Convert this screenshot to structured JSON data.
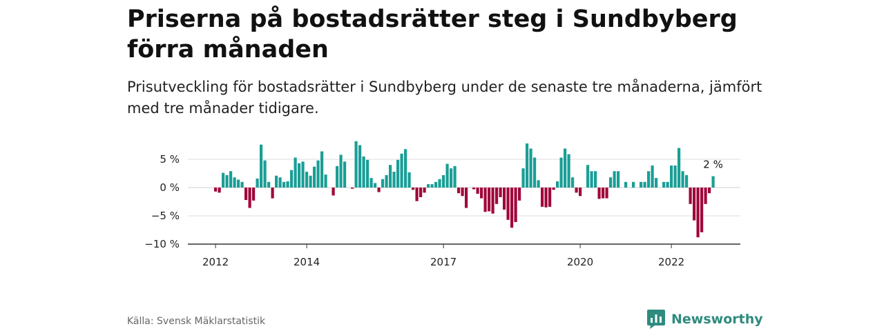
{
  "header": {
    "title": "Priserna på bostadsrätter steg i Sundbyberg förra månaden",
    "subtitle": "Prisutveckling för bostadsrätter i Sundbyberg under de senaste tre månaderna, jämfört med tre månader tidigare."
  },
  "footer": {
    "source": "Källa: Svensk Mäklarstatistik",
    "brand": "Newsworthy"
  },
  "colors": {
    "positive": "#1a9e96",
    "negative": "#a0063a",
    "gridline": "#dddddd",
    "axis": "#333333",
    "brand": "#2e8b7e"
  },
  "chart_data": {
    "type": "bar",
    "title": "Priserna på bostadsrätter steg i Sundbyberg förra månaden",
    "ylabel": "",
    "xlabel": "",
    "ylim": [
      -10,
      8.5
    ],
    "yticks": [
      {
        "value": 5,
        "label": "5 %"
      },
      {
        "value": 0,
        "label": "0 %"
      },
      {
        "value": -5,
        "label": "−5 %"
      },
      {
        "value": -10,
        "label": "−10 %"
      }
    ],
    "xticks": [
      {
        "label": "2012",
        "index": 0
      },
      {
        "label": "2014",
        "index": 24
      },
      {
        "label": "2017",
        "index": 60
      },
      {
        "label": "2020",
        "index": 96
      },
      {
        "label": "2022",
        "index": 120
      }
    ],
    "start": "2012-01",
    "grid": true,
    "last_label": "2 %",
    "values": [
      -0.7,
      -0.9,
      2.6,
      2.2,
      2.9,
      1.8,
      1.4,
      1.0,
      -2.2,
      -3.6,
      -2.3,
      1.6,
      7.6,
      4.8,
      1.0,
      -1.9,
      2.1,
      1.8,
      1.0,
      1.1,
      3.1,
      5.3,
      4.3,
      4.6,
      2.8,
      2.1,
      3.7,
      4.8,
      6.4,
      2.3,
      0.0,
      -1.4,
      3.8,
      5.8,
      4.6,
      0.0,
      -0.2,
      8.2,
      7.5,
      5.5,
      4.9,
      1.7,
      0.8,
      -0.8,
      1.5,
      2.2,
      4.0,
      2.8,
      4.9,
      6.0,
      6.8,
      2.7,
      -0.4,
      -2.4,
      -1.7,
      -0.9,
      0.6,
      0.6,
      1.0,
      1.5,
      2.2,
      4.2,
      3.4,
      3.8,
      -1.0,
      -1.5,
      -3.6,
      0.0,
      -0.3,
      -1.1,
      -1.9,
      -4.3,
      -4.2,
      -4.6,
      -2.9,
      -1.7,
      -3.9,
      -5.7,
      -7.1,
      -6.1,
      -2.3,
      3.4,
      7.8,
      6.9,
      5.3,
      1.3,
      -3.4,
      -3.5,
      -3.4,
      -0.4,
      1.1,
      5.3,
      6.9,
      5.9,
      1.8,
      -0.9,
      -1.5,
      0.0,
      4.0,
      2.9,
      2.9,
      -2.0,
      -1.9,
      -1.9,
      1.8,
      2.9,
      2.9,
      0.0,
      1.0,
      0.0,
      1.0,
      0.0,
      1.0,
      1.0,
      2.9,
      3.9,
      1.7,
      0.0,
      1.0,
      1.0,
      3.9,
      3.9,
      7.0,
      2.9,
      2.2,
      -2.9,
      -5.8,
      -8.8,
      -7.9,
      -2.9,
      -1.0,
      2.0
    ]
  }
}
